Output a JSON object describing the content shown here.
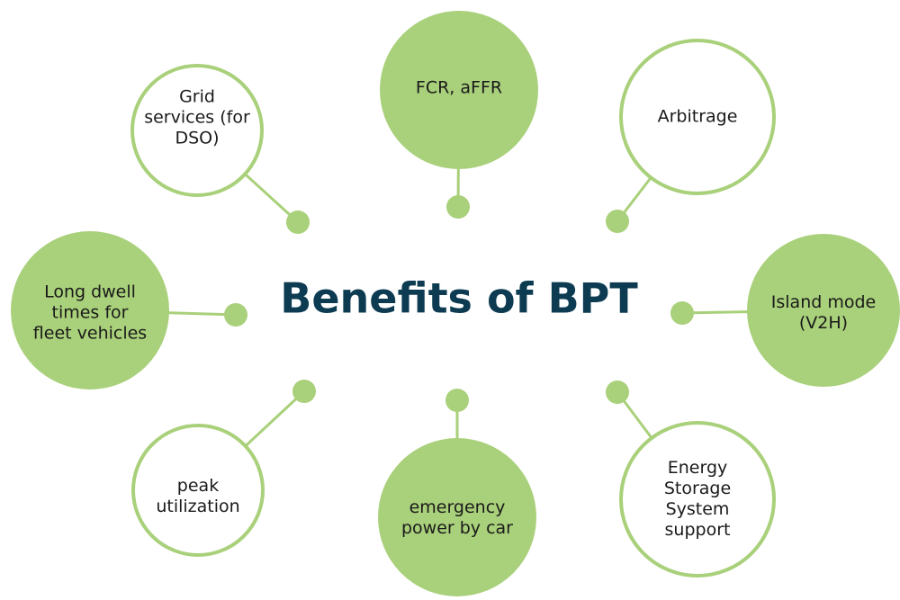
{
  "title": "Benefits of BPT",
  "nodes": [
    {
      "lines": [
        "Grid",
        "services (for",
        "DSO)"
      ]
    },
    {
      "lines": [
        "FCR, aFFR"
      ]
    },
    {
      "lines": [
        "Arbitrage"
      ]
    },
    {
      "lines": [
        "Long dwell",
        "times for",
        "fleet vehicles"
      ]
    },
    {
      "lines": [
        "Island mode",
        "(V2H)"
      ]
    },
    {
      "lines": [
        "peak",
        "utilization"
      ]
    },
    {
      "lines": [
        "emergency",
        "power by car"
      ]
    },
    {
      "lines": [
        "Energy",
        "Storage",
        "System",
        "support"
      ]
    }
  ]
}
